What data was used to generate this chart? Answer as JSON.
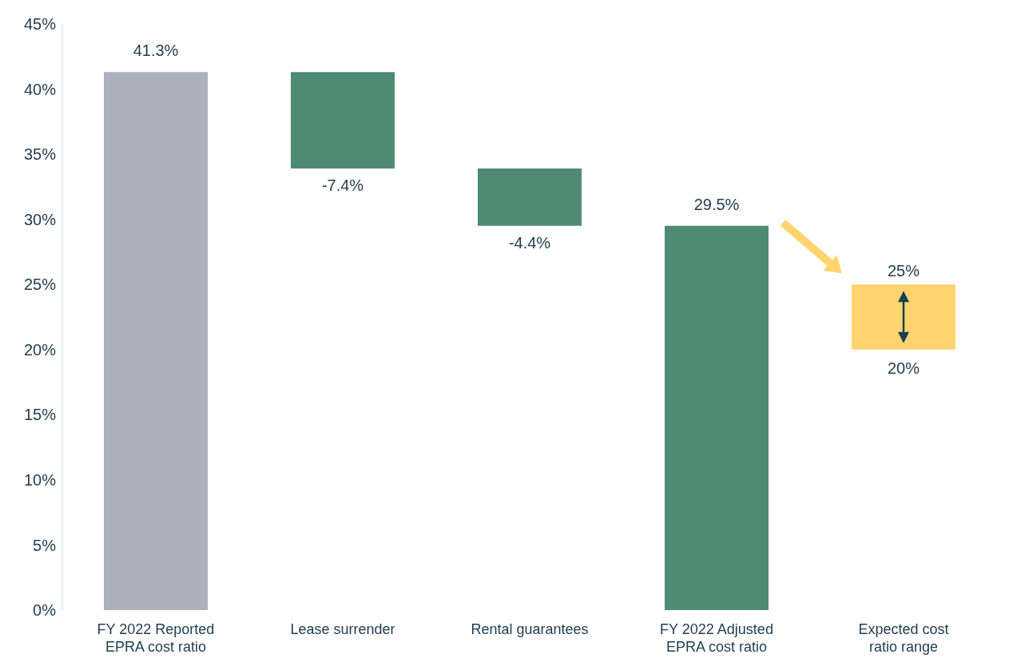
{
  "chart_data": {
    "type": "bar",
    "categories": [
      "FY 2022 Reported EPRA cost ratio",
      "Lease surrender",
      "Rental guarantees",
      "FY 2022 Adjusted EPRA cost ratio",
      "Expected cost ratio range"
    ],
    "values": [
      41.3,
      -7.4,
      -4.4,
      29.5,
      5
    ],
    "base": [
      0,
      41.3,
      33.9,
      0,
      20
    ],
    "colors": [
      "#aab1bb",
      "#4f8b73",
      "#4f8b73",
      "#4f8b73",
      "#ffd46e"
    ],
    "value_labels": [
      "41.3%",
      "-7.4%",
      "-4.4%",
      "29.5%",
      null
    ],
    "annotations": [
      {
        "text": "25%",
        "x": "Expected cost ratio range",
        "y": 25
      },
      {
        "text": "20%",
        "x": "Expected cost ratio range",
        "y": 20
      }
    ],
    "ylim": [
      0,
      45
    ],
    "yticks": [
      {
        "value": 0,
        "label": "0%"
      },
      {
        "value": 5,
        "label": "5%"
      },
      {
        "value": 10,
        "label": "10%"
      },
      {
        "value": 15,
        "label": "15%"
      },
      {
        "value": 20,
        "label": "20%"
      },
      {
        "value": 25,
        "label": "25%"
      },
      {
        "value": 30,
        "label": "30%"
      },
      {
        "value": 35,
        "label": "35%"
      },
      {
        "value": 40,
        "label": "40%"
      },
      {
        "value": 45,
        "label": "45%"
      }
    ],
    "grid": false,
    "legend": false
  }
}
